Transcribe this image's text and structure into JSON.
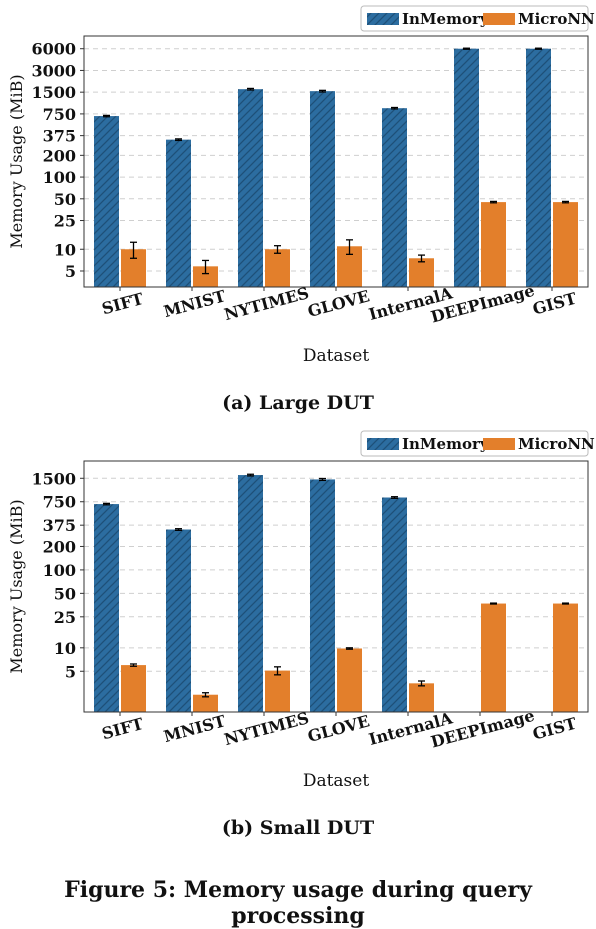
{
  "figure_caption": "Figure 5: Memory usage during query processing",
  "colors": {
    "inmemory": "#2c6da0",
    "micronn": "#e37f2b",
    "hatch": "#1d4f78",
    "grid": "#cfcfcf"
  },
  "chart_data": [
    {
      "type": "bar",
      "caption": "(a) Large DUT",
      "xlabel": "Dataset",
      "ylabel": "Memory Usage (MiB)",
      "yscale": "log",
      "ylim": [
        3,
        9000
      ],
      "yticks": [
        5,
        10,
        25,
        50,
        100,
        200,
        375,
        750,
        1500,
        3000,
        6000
      ],
      "grid": true,
      "legend_position": "top-right",
      "categories": [
        "SIFT",
        "MNIST",
        "NYTIMES",
        "GLOVE",
        "InternalA",
        "DEEPImage",
        "GIST"
      ],
      "series": [
        {
          "name": "InMemory",
          "values": [
            700,
            330,
            1650,
            1550,
            900,
            6000,
            6000
          ],
          "errors": [
            15,
            8,
            40,
            40,
            20,
            100,
            100
          ]
        },
        {
          "name": "MicroNN",
          "values": [
            10,
            5.8,
            10,
            11,
            7.5,
            45,
            45
          ],
          "errors": [
            2.5,
            1.2,
            1.2,
            2.5,
            0.8,
            1,
            1
          ]
        }
      ]
    },
    {
      "type": "bar",
      "caption": "(b) Small DUT",
      "xlabel": "Dataset",
      "ylabel": "Memory Usage (MiB)",
      "yscale": "log",
      "ylim": [
        1.5,
        2500
      ],
      "yticks": [
        5,
        10,
        25,
        50,
        100,
        200,
        375,
        750,
        1500
      ],
      "grid": true,
      "legend_position": "top-right",
      "categories": [
        "SIFT",
        "MNIST",
        "NYTIMES",
        "GLOVE",
        "InternalA",
        "DEEPImage",
        "GIST"
      ],
      "series": [
        {
          "name": "InMemory",
          "values": [
            700,
            330,
            1650,
            1450,
            850,
            null,
            null
          ],
          "errors": [
            15,
            8,
            40,
            40,
            20,
            0,
            0
          ]
        },
        {
          "name": "MicroNN",
          "values": [
            6,
            2.5,
            5.1,
            9.8,
            3.5,
            37,
            37
          ],
          "errors": [
            0.2,
            0.15,
            0.6,
            0.2,
            0.25,
            0.5,
            0.5
          ]
        }
      ]
    }
  ]
}
